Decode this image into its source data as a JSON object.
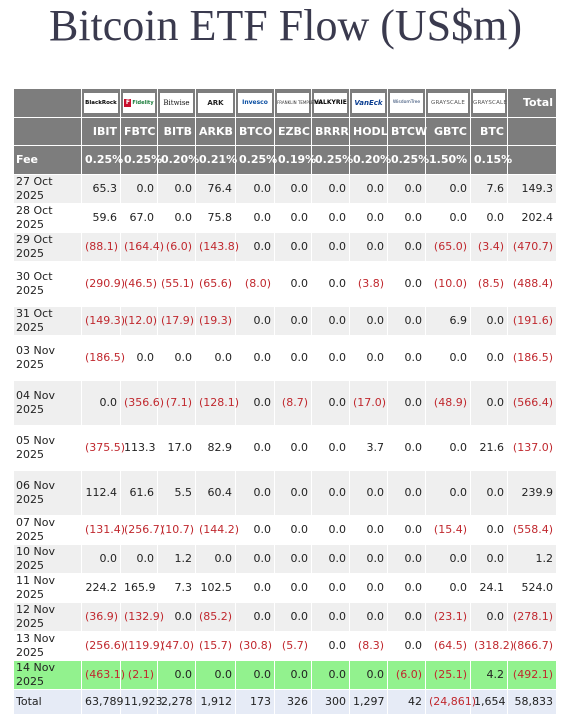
{
  "title": "Bitcoin ETF Flow (US$m)",
  "chart_data": {
    "type": "table",
    "title": "Bitcoin ETF Flow (US$m)",
    "logo_texts": [
      "BlackRock",
      "Fidelity",
      "Bitwise",
      "ARK",
      "Invesco",
      "FRANKLIN TEMPLETON",
      "VALKYRIE",
      "VanEck",
      "WisdomTree",
      "GRAYSCALE",
      "GRAYSCALE"
    ],
    "total_header": "Total",
    "tickers": [
      "IBIT",
      "FBTC",
      "BITB",
      "ARKB",
      "BTCO",
      "EZBC",
      "BRRR",
      "HODL",
      "BTCW",
      "GBTC",
      "BTC"
    ],
    "fee_label": "Fee",
    "fees": [
      "0.25%",
      "0.25%",
      "0.20%",
      "0.21%",
      "0.25%",
      "0.19%",
      "0.25%",
      "0.20%",
      "0.25%",
      "1.50%",
      "0.15%"
    ],
    "rows": [
      {
        "date": "27 Oct 2025",
        "values": [
          "65.3",
          "0.0",
          "0.0",
          "76.4",
          "0.0",
          "0.0",
          "0.0",
          "0.0",
          "0.0",
          "0.0",
          "7.6"
        ],
        "total": "149.3"
      },
      {
        "date": "28 Oct 2025",
        "values": [
          "59.6",
          "67.0",
          "0.0",
          "75.8",
          "0.0",
          "0.0",
          "0.0",
          "0.0",
          "0.0",
          "0.0",
          "0.0"
        ],
        "total": "202.4"
      },
      {
        "date": "29 Oct 2025",
        "values": [
          "(88.1)",
          "(164.4)",
          "(6.0)",
          "(143.8)",
          "0.0",
          "0.0",
          "0.0",
          "0.0",
          "0.0",
          "(65.0)",
          "(3.4)"
        ],
        "total": "(470.7)"
      },
      {
        "date": "30 Oct 2025",
        "values": [
          "(290.9)",
          "(46.5)",
          "(55.1)",
          "(65.6)",
          "(8.0)",
          "0.0",
          "0.0",
          "(3.8)",
          "0.0",
          "(10.0)",
          "(8.5)"
        ],
        "total": "(488.4)"
      },
      {
        "date": "31 Oct 2025",
        "values": [
          "(149.3)",
          "(12.0)",
          "(17.9)",
          "(19.3)",
          "0.0",
          "0.0",
          "0.0",
          "0.0",
          "0.0",
          "6.9",
          "0.0"
        ],
        "total": "(191.6)"
      },
      {
        "date": "03 Nov 2025",
        "values": [
          "(186.5)",
          "0.0",
          "0.0",
          "0.0",
          "0.0",
          "0.0",
          "0.0",
          "0.0",
          "0.0",
          "0.0",
          "0.0"
        ],
        "total": "(186.5)"
      },
      {
        "date": "04 Nov 2025",
        "values": [
          "0.0",
          "(356.6)",
          "(7.1)",
          "(128.1)",
          "0.0",
          "(8.7)",
          "0.0",
          "(17.0)",
          "0.0",
          "(48.9)",
          "0.0"
        ],
        "total": "(566.4)"
      },
      {
        "date": "05 Nov 2025",
        "values": [
          "(375.5)",
          "113.3",
          "17.0",
          "82.9",
          "0.0",
          "0.0",
          "0.0",
          "3.7",
          "0.0",
          "0.0",
          "21.6"
        ],
        "total": "(137.0)"
      },
      {
        "date": "06 Nov 2025",
        "values": [
          "112.4",
          "61.6",
          "5.5",
          "60.4",
          "0.0",
          "0.0",
          "0.0",
          "0.0",
          "0.0",
          "0.0",
          "0.0"
        ],
        "total": "239.9"
      },
      {
        "date": "07 Nov 2025",
        "values": [
          "(131.4)",
          "(256.7)",
          "(10.7)",
          "(144.2)",
          "0.0",
          "0.0",
          "0.0",
          "0.0",
          "0.0",
          "(15.4)",
          "0.0"
        ],
        "total": "(558.4)"
      },
      {
        "date": "10 Nov 2025",
        "values": [
          "0.0",
          "0.0",
          "1.2",
          "0.0",
          "0.0",
          "0.0",
          "0.0",
          "0.0",
          "0.0",
          "0.0",
          "0.0"
        ],
        "total": "1.2"
      },
      {
        "date": "11 Nov 2025",
        "values": [
          "224.2",
          "165.9",
          "7.3",
          "102.5",
          "0.0",
          "0.0",
          "0.0",
          "0.0",
          "0.0",
          "0.0",
          "24.1"
        ],
        "total": "524.0"
      },
      {
        "date": "12 Nov 2025",
        "values": [
          "(36.9)",
          "(132.9)",
          "0.0",
          "(85.2)",
          "0.0",
          "0.0",
          "0.0",
          "0.0",
          "0.0",
          "(23.1)",
          "0.0"
        ],
        "total": "(278.1)"
      },
      {
        "date": "13 Nov 2025",
        "values": [
          "(256.6)",
          "(119.9)",
          "(47.0)",
          "(15.7)",
          "(30.8)",
          "(5.7)",
          "0.0",
          "(8.3)",
          "0.0",
          "(64.5)",
          "(318.2)"
        ],
        "total": "(866.7)"
      },
      {
        "date": "14 Nov 2025",
        "values": [
          "(463.1)",
          "(2.1)",
          "0.0",
          "0.0",
          "0.0",
          "0.0",
          "0.0",
          "0.0",
          "(6.0)",
          "(25.1)",
          "4.2"
        ],
        "total": "(492.1)",
        "highlight": true
      }
    ],
    "total_label": "Total",
    "totals": [
      "63,789",
      "11,923",
      "2,278",
      "1,912",
      "173",
      "326",
      "300",
      "1,297",
      "42",
      "(24,861)",
      "1,654"
    ],
    "grand_total": "58,833"
  },
  "colors": {
    "header_bg": "#7d7d7d",
    "negative": "#c0282e",
    "highlight_row": "#92f28e",
    "alt_row": "#efefef",
    "total_row": "#e6ebf6",
    "title": "#3a3a4e"
  }
}
